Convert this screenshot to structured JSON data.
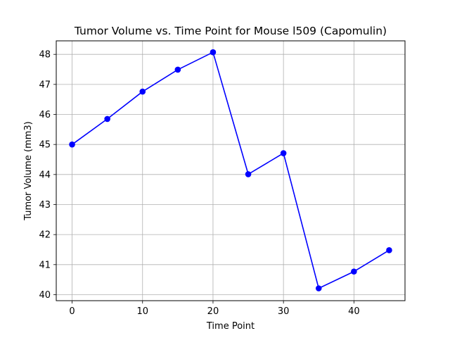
{
  "chart_data": {
    "type": "line",
    "title": "Tumor Volume vs. Time Point for Mouse l509 (Capomulin)",
    "xlabel": "Time Point",
    "ylabel": "Tumor Volume (mm3)",
    "x": [
      0,
      5,
      10,
      15,
      20,
      25,
      30,
      35,
      40,
      45
    ],
    "series": [
      {
        "values": [
          45.0,
          45.85,
          46.76,
          47.49,
          48.07,
          44.01,
          44.71,
          40.21,
          40.77,
          41.48
        ],
        "color": "#0000ff",
        "marker": "circle"
      }
    ],
    "xlim": [
      -2.25,
      47.25
    ],
    "ylim": [
      39.8,
      48.45
    ],
    "xticks": [
      0,
      10,
      20,
      30,
      40
    ],
    "yticks": [
      40,
      41,
      42,
      43,
      44,
      45,
      46,
      47,
      48
    ],
    "grid": true,
    "legend": false
  }
}
